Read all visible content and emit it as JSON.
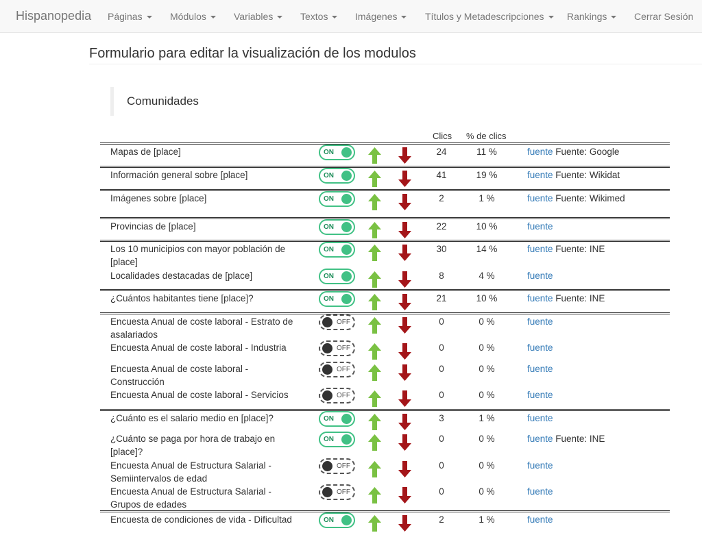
{
  "navbar": {
    "brand": "Hispanopedia",
    "items": [
      {
        "label": "Páginas",
        "dropdown": true
      },
      {
        "label": "Módulos",
        "dropdown": true
      },
      {
        "label": "Variables",
        "dropdown": true
      },
      {
        "label": "Textos",
        "dropdown": true
      },
      {
        "label": "Imágenes",
        "dropdown": true
      },
      {
        "label": "Títulos y Metadescripciones",
        "dropdown": true
      },
      {
        "label": "Rankings",
        "dropdown": true
      },
      {
        "label": "Cerrar Sesión",
        "dropdown": false
      }
    ]
  },
  "page_title": "Formulario para editar la visualización de los modulos",
  "section_title": "Comunidades",
  "columns": {
    "clicks": "Clics",
    "pct": "% de clics"
  },
  "toggle_labels": {
    "on": "ON",
    "off": "OFF"
  },
  "link_label": "fuente",
  "colors": {
    "on": "#41c185",
    "up_arrow": "#7ac143",
    "down_arrow": "#a4161a",
    "link": "#337ab7"
  },
  "rows": [
    {
      "name": "Mapas de [place]",
      "on": true,
      "clicks": "24",
      "pct": "11 %",
      "source": "Fuente: Google"
    },
    {
      "name": "Información general sobre [place]",
      "on": true,
      "clicks": "41",
      "pct": "19 %",
      "source": "Fuente: Wikidat"
    },
    {
      "name": "Imágenes sobre [place]",
      "on": true,
      "clicks": "2",
      "pct": "1 %",
      "source": "Fuente: Wikimed"
    },
    {
      "name": "Provincias de [place]",
      "on": true,
      "clicks": "22",
      "pct": "10 %",
      "source": ""
    },
    {
      "name": "Los 10 municipios con mayor población de [place]",
      "on": true,
      "clicks": "30",
      "pct": "14 %",
      "source": "Fuente: INE"
    },
    {
      "name": "Localidades destacadas de [place]",
      "on": true,
      "clicks": "8",
      "pct": "4 %",
      "source": ""
    },
    {
      "name": "¿Cuántos habitantes tiene [place]?",
      "on": true,
      "clicks": "21",
      "pct": "10 %",
      "source": "Fuente: INE"
    },
    {
      "name": "Encuesta Anual de coste laboral - Estrato de asalariados",
      "on": false,
      "clicks": "0",
      "pct": "0 %",
      "source": ""
    },
    {
      "name": "Encuesta Anual de coste laboral - Industria",
      "on": false,
      "clicks": "0",
      "pct": "0 %",
      "source": ""
    },
    {
      "name": "Encuesta Anual de coste laboral - Construcción",
      "on": false,
      "clicks": "0",
      "pct": "0 %",
      "source": ""
    },
    {
      "name": "Encuesta Anual de coste laboral - Servicios",
      "on": false,
      "clicks": "0",
      "pct": "0 %",
      "source": ""
    },
    {
      "name": "¿Cuánto es el salario medio en [place]?",
      "on": true,
      "clicks": "3",
      "pct": "1 %",
      "source": ""
    },
    {
      "name": "¿Cuánto se paga por hora de trabajo en [place]?",
      "on": true,
      "clicks": "0",
      "pct": "0 %",
      "source": "Fuente: INE"
    },
    {
      "name": "Encuesta Anual de Estructura Salarial - Semiintervalos de edad",
      "on": false,
      "clicks": "0",
      "pct": "0 %",
      "source": ""
    },
    {
      "name": "Encuesta Anual de Estructura Salarial - Grupos de edades",
      "on": false,
      "clicks": "0",
      "pct": "0 %",
      "source": ""
    },
    {
      "name": "Encuesta de condiciones de vida - Dificultad",
      "on": true,
      "clicks": "2",
      "pct": "1 %",
      "source": ""
    }
  ]
}
